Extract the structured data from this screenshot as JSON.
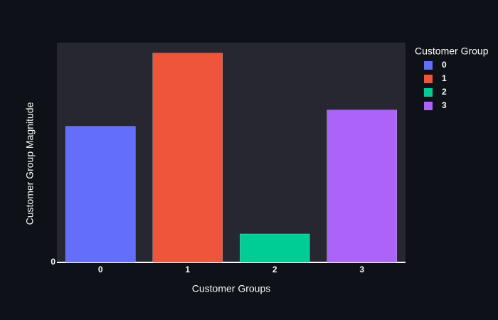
{
  "chart_data": {
    "type": "bar",
    "x_label": "Customer Groups",
    "y_label": "Customer Group Magnitude",
    "legend_title": "Customer Group",
    "categories": [
      "0",
      "1",
      "2",
      "3"
    ],
    "series": [
      {
        "name": "0",
        "color": "#636efa",
        "values": [
          65,
          null,
          null,
          null
        ]
      },
      {
        "name": "1",
        "color": "#ef553b",
        "values": [
          null,
          100,
          null,
          null
        ]
      },
      {
        "name": "2",
        "color": "#00cc96",
        "values": [
          null,
          null,
          13.6,
          null
        ]
      },
      {
        "name": "3",
        "color": "#ab63fa",
        "values": [
          null,
          null,
          null,
          72.8
        ]
      }
    ],
    "ylim": [
      0,
      105
    ],
    "yticks": [
      0
    ],
    "grid": false
  }
}
